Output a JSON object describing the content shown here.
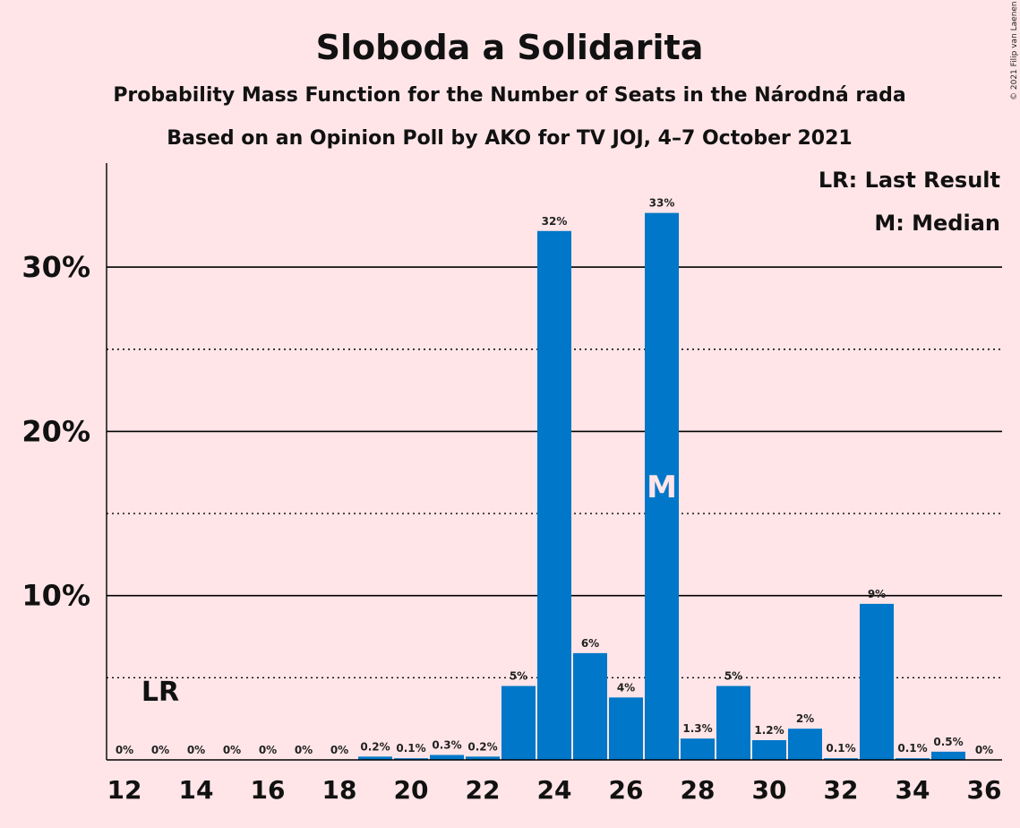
{
  "chart_data": {
    "type": "bar",
    "title": "Sloboda a Solidarita",
    "subtitle": "Probability Mass Function for the Number of Seats in the Národná rada",
    "subtitle2": "Based on an Opinion Poll by AKO for TV JOJ, 4–7 October 2021",
    "copyright": "© 2021 Filip van Laenen",
    "legend": [
      "LR: Last Result",
      "M: Median"
    ],
    "last_result_label": "LR",
    "last_result_seat": 13,
    "median_label": "M",
    "median_seat": 27,
    "x": [
      12,
      13,
      14,
      15,
      16,
      17,
      18,
      19,
      20,
      21,
      22,
      23,
      24,
      25,
      26,
      27,
      28,
      29,
      30,
      31,
      32,
      33,
      34,
      35,
      36
    ],
    "values": [
      0,
      0,
      0,
      0,
      0,
      0,
      0,
      0.2,
      0.1,
      0.3,
      0.2,
      4.5,
      32.2,
      6.5,
      3.8,
      33.3,
      1.3,
      4.5,
      1.2,
      1.9,
      0.1,
      9.5,
      0.1,
      0.5,
      0
    ],
    "data_labels": [
      "0%",
      "0%",
      "0%",
      "0%",
      "0%",
      "0%",
      "0%",
      "0.2%",
      "0.1%",
      "0.3%",
      "0.2%",
      "5%",
      "32%",
      "6%",
      "4%",
      "33%",
      "1.3%",
      "5%",
      "1.2%",
      "2%",
      "0.1%",
      "9%",
      "0.1%",
      "0.5%",
      "0%"
    ],
    "x_ticks": [
      "12",
      "14",
      "16",
      "18",
      "20",
      "22",
      "24",
      "26",
      "28",
      "30",
      "32",
      "34",
      "36"
    ],
    "y_ticks": [
      {
        "value": 10,
        "label": "10%"
      },
      {
        "value": 20,
        "label": "20%"
      },
      {
        "value": 30,
        "label": "30%"
      }
    ],
    "minor_gridlines": [
      5,
      15,
      25
    ],
    "ylim": [
      0,
      36.3
    ],
    "xlim": [
      11.5,
      36.5
    ],
    "bar_color": "#0077C8",
    "background": "#FFE5E8"
  }
}
